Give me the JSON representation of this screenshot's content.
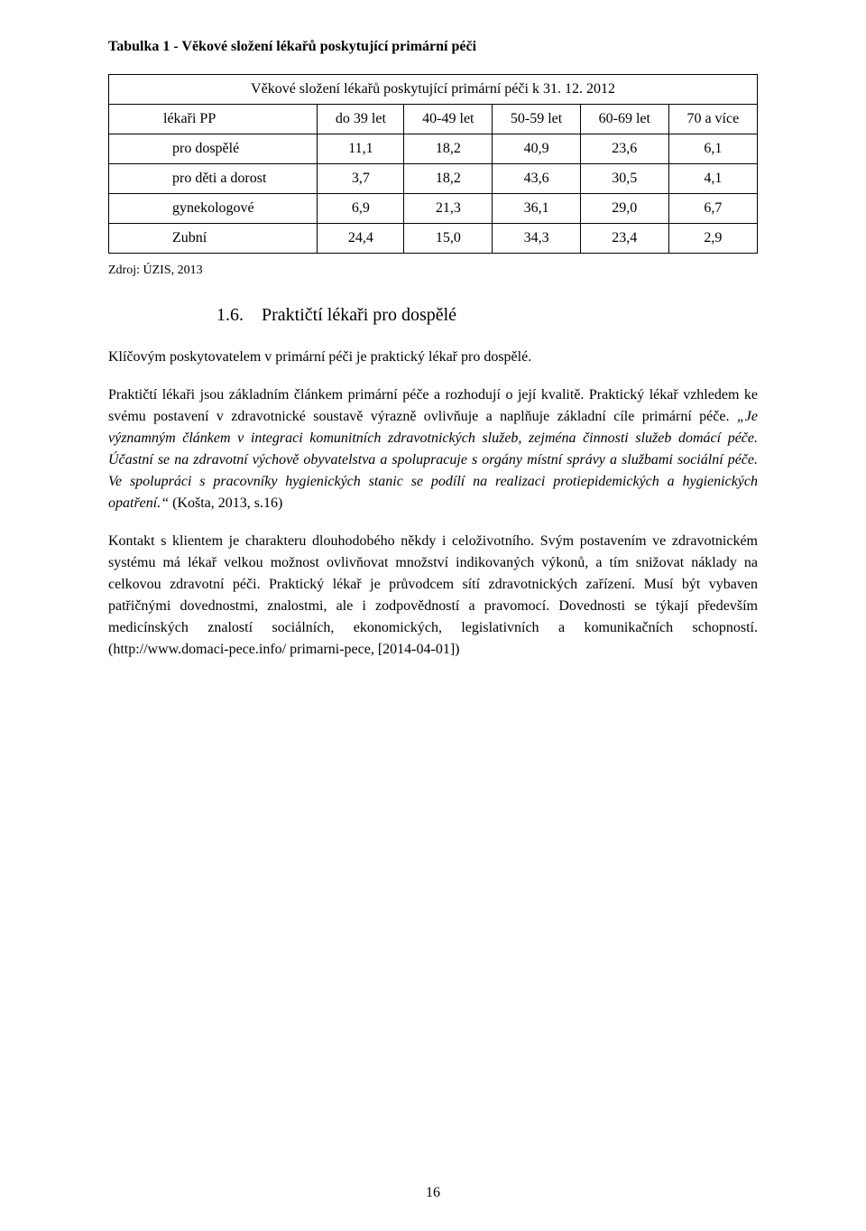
{
  "caption": "Tabulka 1 - Věkové složení lékařů poskytující primární péči",
  "table": {
    "title_row": "Věkové složení lékařů poskytující primární péči k 31. 12. 2012",
    "header_col1": "lékaři PP",
    "columns": [
      "do 39 let",
      "40-49 let",
      "50-59 let",
      "60-69 let",
      "70 a více"
    ],
    "rows": [
      {
        "label": "pro dospělé",
        "values": [
          "11,1",
          "18,2",
          "40,9",
          "23,6",
          "6,1"
        ]
      },
      {
        "label": "pro děti a dorost",
        "values": [
          "3,7",
          "18,2",
          "43,6",
          "30,5",
          "4,1"
        ]
      },
      {
        "label": "gynekologové",
        "values": [
          "6,9",
          "21,3",
          "36,1",
          "29,0",
          "6,7"
        ]
      },
      {
        "label": "Zubní",
        "values": [
          "24,4",
          "15,0",
          "34,3",
          "23,4",
          "2,9"
        ]
      }
    ]
  },
  "source": "Zdroj: ÚZIS, 2013",
  "section_number": "1.6.",
  "section_title": "Praktičtí lékaři pro dospělé",
  "p1": "Klíčovým poskytovatelem v primární péči je praktický lékař pro dospělé.",
  "p2_lead": "Praktičtí lékaři jsou základním článkem primární péče a rozhodují o její kvalitě. Praktický lékař vzhledem ke svému postavení v zdravotnické soustavě výrazně ovlivňuje a naplňuje základní cíle primární péče.",
  "p2_quote": "„Je významným článkem v integraci komunitních zdravotnických služeb, zejména činnosti služeb domácí péče. Účastní se na zdravotní výchově obyvatelstva a spolupracuje s orgány místní správy a službami sociální péče. Ve spolupráci s pracovníky hygienických stanic se podílí na realizaci protiepidemických a hygienických opatření.“",
  "p2_cite": " (Košta, 2013, s.16)",
  "p3": "Kontakt s klientem je charakteru dlouhodobého někdy i celoživotního. Svým postavením ve zdravotnickém systému má lékař velkou možnost ovlivňovat množství indikovaných výkonů, a tím snižovat náklady na celkovou zdravotní péči. Praktický lékař je průvodcem sítí zdravotnických zařízení. Musí být vybaven patřičnými dovednostmi, znalostmi, ale i zodpovědností a pravomocí. Dovednosti se týkají především medicínských znalostí sociálních, ekonomických, legislativních a komunikačních schopností. (http://www.domaci-pece.info/ primarni-pece, [2014-04-01])",
  "page_number": "16"
}
